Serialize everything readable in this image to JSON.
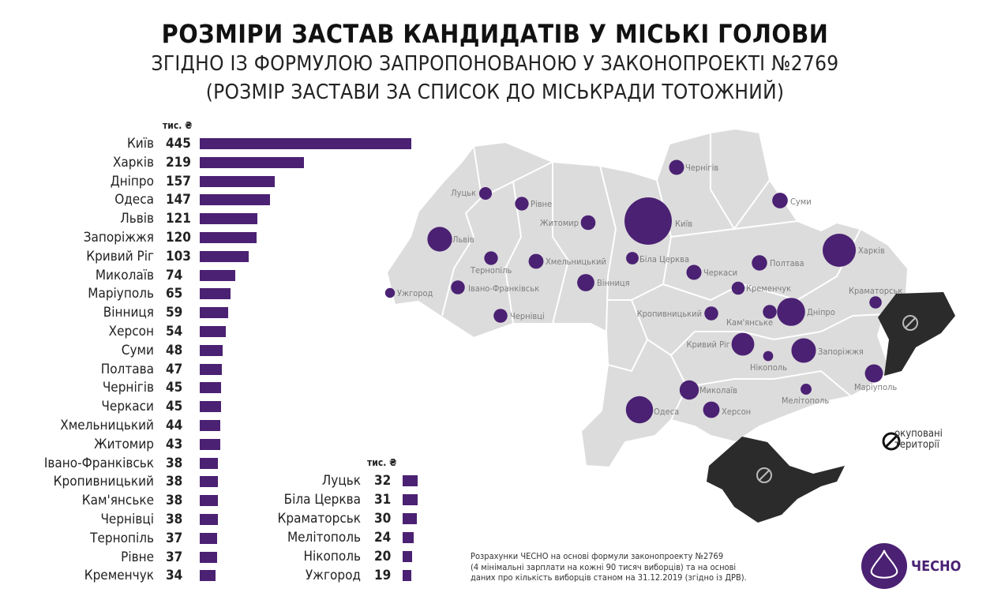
{
  "title": "РОЗМІРИ ЗАСТАВ КАНДИДАТІВ У МІСЬКІ ГОЛОВИ",
  "subtitle1": "ЗГІДНО ІЗ ФОРМУЛОЮ ЗАПРОПОНОВАНОЮ У ЗАКОНОПРОЕКТІ №2769",
  "subtitle2": "(РОЗМІР ЗАСТАВИ ЗА СПИСОК ДО МІСЬКРАДИ ТОТОЖНИЙ)",
  "chart_data": {
    "type": "bar",
    "orientation": "horizontal",
    "unit": "тис. ₴",
    "categories": [
      "Київ",
      "Харків",
      "Дніпро",
      "Одеса",
      "Львів",
      "Запоріжжя",
      "Кривий Ріг",
      "Миколаїв",
      "Маріуполь",
      "Вінниця",
      "Херсон",
      "Суми",
      "Полтава",
      "Чернігів",
      "Черкаси",
      "Хмельницький",
      "Житомир",
      "Івано-Франківськ",
      "Кропивницький",
      "Кам'янське",
      "Чернівці",
      "Тернопіль",
      "Рівне",
      "Кременчук",
      "Луцьк",
      "Біла Церква",
      "Краматорськ",
      "Мелітополь",
      "Нікополь",
      "Ужгород"
    ],
    "values": [
      445,
      219,
      157,
      147,
      121,
      120,
      103,
      74,
      65,
      59,
      54,
      48,
      47,
      45,
      45,
      44,
      43,
      38,
      38,
      38,
      38,
      37,
      37,
      34,
      32,
      31,
      30,
      24,
      20,
      19
    ],
    "xlim": [
      0,
      445
    ],
    "color": "#4b2173"
  },
  "legend": {
    "line1": "окуповані",
    "line2": "території"
  },
  "note": [
    "Розрахунки ЧЕСНО на основі формули законопроекту №2769",
    "(4 мінімальні зарплати на кожні 90 тисяч виборців) та на основі",
    "даних про кількість виборців станом на 31.12.2019 (згідно із ДРВ)."
  ],
  "brand": "ЧЕСНО",
  "colors": {
    "bar": "#4b2173",
    "map": "#dcdcdc",
    "occupied": "#2b2b2b"
  }
}
